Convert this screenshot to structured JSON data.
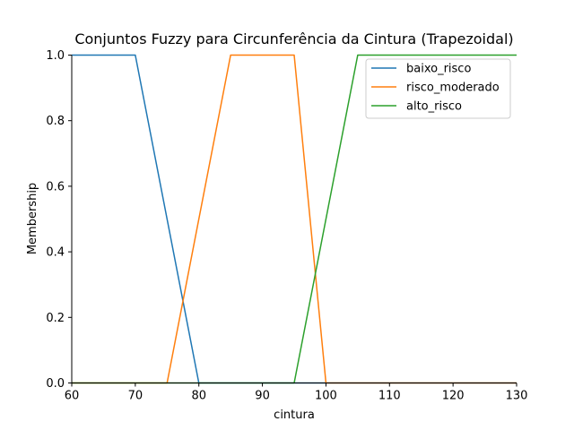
{
  "chart_data": {
    "type": "line",
    "title": "Conjuntos Fuzzy para Circunferência da Cintura (Trapezoidal)",
    "xlabel": "cintura",
    "ylabel": "Membership",
    "xlim": [
      60,
      130
    ],
    "ylim": [
      0,
      1
    ],
    "xticks": [
      60,
      70,
      80,
      90,
      100,
      110,
      120,
      130
    ],
    "xtick_labels": [
      "60",
      "70",
      "80",
      "90",
      "100",
      "110",
      "120",
      "130"
    ],
    "yticks": [
      0,
      0.2,
      0.4,
      0.6,
      0.8,
      1.0
    ],
    "ytick_labels": [
      "0.0",
      "0.2",
      "0.4",
      "0.6",
      "0.8",
      "1.0"
    ],
    "grid": false,
    "legend_position": "top-right",
    "series": [
      {
        "name": "baixo_risco",
        "color": "#1f77b4",
        "x": [
          60,
          70,
          80,
          130
        ],
        "y": [
          1,
          1,
          0,
          0
        ]
      },
      {
        "name": "risco_moderado",
        "color": "#ff7f0e",
        "x": [
          60,
          75,
          85,
          95,
          100,
          130
        ],
        "y": [
          0,
          0,
          1,
          1,
          0,
          0
        ]
      },
      {
        "name": "alto_risco",
        "color": "#2ca02c",
        "x": [
          60,
          95,
          105,
          130
        ],
        "y": [
          0,
          0,
          1,
          1
        ]
      }
    ]
  }
}
